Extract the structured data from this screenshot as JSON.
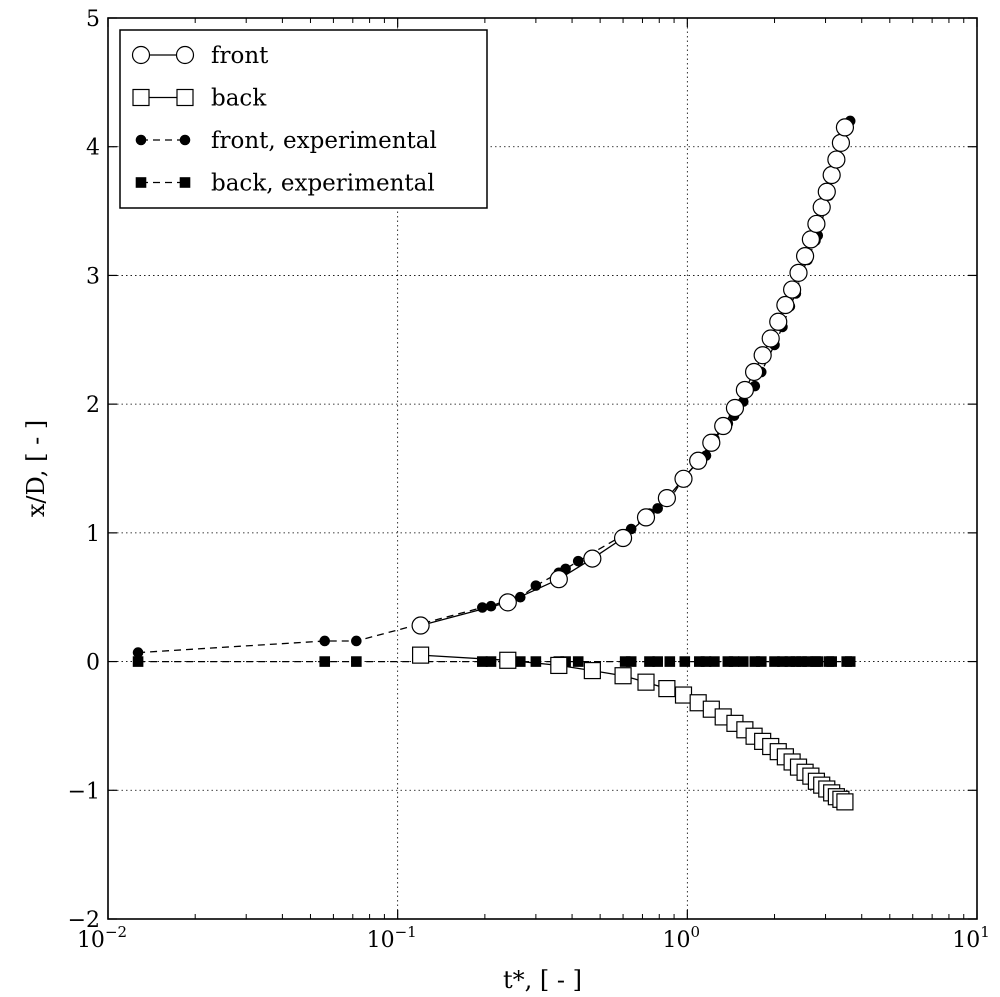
{
  "chart_data": {
    "type": "line",
    "xlabel": "t*, [ - ]",
    "ylabel": "x/D, [ - ]",
    "xscale": "log",
    "xlim": [
      0.01,
      10
    ],
    "ylim": [
      -2,
      5
    ],
    "grid": true,
    "legend_position": "top-left",
    "x_ticks": [
      0.01,
      0.1,
      1,
      10
    ],
    "x_tick_labels": [
      "10",
      "10",
      "10",
      "10"
    ],
    "x_tick_exponents": [
      "−2",
      "−1",
      "0",
      "1"
    ],
    "y_ticks": [
      -2,
      -1,
      0,
      1,
      2,
      3,
      4,
      5
    ],
    "y_tick_labels": [
      "−2",
      "−1",
      "0",
      "1",
      "2",
      "3",
      "4",
      "5"
    ],
    "series": [
      {
        "name": "front",
        "marker": "open-circle",
        "line": "solid",
        "x": [
          0.12,
          0.24,
          0.36,
          0.47,
          0.6,
          0.72,
          0.85,
          0.97,
          1.09,
          1.21,
          1.33,
          1.46,
          1.58,
          1.7,
          1.82,
          1.94,
          2.06,
          2.18,
          2.3,
          2.42,
          2.55,
          2.67,
          2.79,
          2.91,
          3.03,
          3.15,
          3.27,
          3.39,
          3.5
        ],
        "y": [
          0.28,
          0.46,
          0.64,
          0.8,
          0.96,
          1.12,
          1.27,
          1.42,
          1.56,
          1.7,
          1.83,
          1.97,
          2.11,
          2.25,
          2.38,
          2.51,
          2.64,
          2.77,
          2.89,
          3.02,
          3.15,
          3.28,
          3.4,
          3.53,
          3.65,
          3.78,
          3.9,
          4.03,
          4.15
        ]
      },
      {
        "name": "back",
        "marker": "open-square",
        "line": "solid",
        "x": [
          0.12,
          0.24,
          0.36,
          0.47,
          0.6,
          0.72,
          0.85,
          0.97,
          1.09,
          1.21,
          1.33,
          1.46,
          1.58,
          1.7,
          1.82,
          1.94,
          2.06,
          2.18,
          2.3,
          2.42,
          2.55,
          2.67,
          2.79,
          2.91,
          3.03,
          3.15,
          3.27,
          3.39,
          3.5
        ],
        "y": [
          0.05,
          0.01,
          -0.03,
          -0.07,
          -0.11,
          -0.16,
          -0.21,
          -0.26,
          -0.32,
          -0.37,
          -0.43,
          -0.48,
          -0.53,
          -0.58,
          -0.62,
          -0.66,
          -0.7,
          -0.74,
          -0.78,
          -0.82,
          -0.86,
          -0.89,
          -0.93,
          -0.96,
          -0.99,
          -1.02,
          -1.05,
          -1.07,
          -1.09
        ]
      },
      {
        "name": "front, experimental",
        "marker": "filled-circle",
        "line": "dashed",
        "x": [
          0.0127,
          0.056,
          0.072,
          0.196,
          0.21,
          0.24,
          0.265,
          0.3,
          0.36,
          0.38,
          0.42,
          0.61,
          0.64,
          0.74,
          0.79,
          0.87,
          0.98,
          1.1,
          1.16,
          1.24,
          1.38,
          1.45,
          1.56,
          1.71,
          1.8,
          2.0,
          2.13,
          2.26,
          2.37,
          2.48,
          2.6,
          2.77,
          2.82,
          3.08,
          3.15,
          3.55,
          3.65
        ],
        "y": [
          0.07,
          0.16,
          0.16,
          0.42,
          0.43,
          0.48,
          0.5,
          0.59,
          0.69,
          0.72,
          0.78,
          0.99,
          1.03,
          1.15,
          1.19,
          1.26,
          1.44,
          1.56,
          1.6,
          1.73,
          1.85,
          1.91,
          2.02,
          2.14,
          2.25,
          2.46,
          2.6,
          2.76,
          2.86,
          3.02,
          3.12,
          3.27,
          3.31,
          3.62,
          3.8,
          4.16,
          4.2
        ]
      },
      {
        "name": "back, experimental",
        "marker": "filled-square",
        "line": "dashed",
        "x": [
          0.0127,
          0.056,
          0.072,
          0.196,
          0.21,
          0.24,
          0.265,
          0.3,
          0.36,
          0.38,
          0.42,
          0.61,
          0.64,
          0.74,
          0.79,
          0.87,
          0.98,
          1.1,
          1.16,
          1.24,
          1.38,
          1.45,
          1.56,
          1.71,
          1.8,
          2.0,
          2.13,
          2.26,
          2.37,
          2.48,
          2.6,
          2.77,
          2.82,
          3.08,
          3.15,
          3.55,
          3.65
        ],
        "y": [
          0,
          0,
          0,
          0,
          0,
          0,
          0,
          0,
          0,
          0,
          0,
          0,
          0,
          0,
          0,
          0,
          0,
          0,
          0,
          0,
          0,
          0,
          0,
          0,
          0,
          0,
          0,
          0,
          0,
          0,
          0,
          0,
          0,
          0,
          0,
          0,
          0
        ]
      }
    ]
  }
}
